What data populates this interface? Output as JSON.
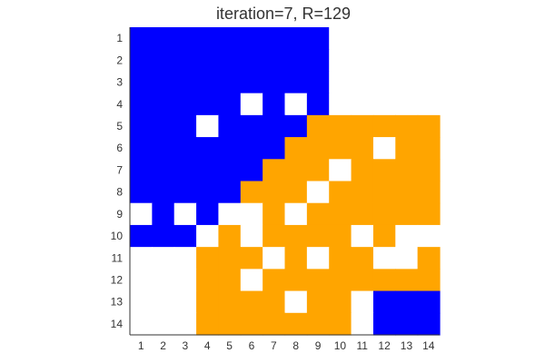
{
  "chart_data": {
    "type": "heatmap",
    "title": "iteration=7, R=129",
    "xlabel": "",
    "ylabel": "",
    "x_ticks": [
      "1",
      "2",
      "3",
      "4",
      "5",
      "6",
      "7",
      "8",
      "9",
      "10",
      "11",
      "12",
      "13",
      "14"
    ],
    "y_ticks": [
      "1",
      "2",
      "3",
      "4",
      "5",
      "6",
      "7",
      "8",
      "9",
      "10",
      "11",
      "12",
      "13",
      "14"
    ],
    "colors": {
      "blue": "#0000ff",
      "orange": "#ffa500",
      "white": "#ffffff"
    },
    "legend": null,
    "grid": false,
    "rows": [
      "BBBBBBBBBWWWWW",
      "BBBBBBBBBWWWWW",
      "BBBBBBBBBWWWWW",
      "BBBBBWBWBWWWWW",
      "BBBWBBBBOOOOOO",
      "BBBBBBBOOOOWOO",
      "BBBBBBOOOWOOOO",
      "BBBBBOOOWOOOOO",
      "WBWBWWOWOOOOOO",
      "BBBWOWOOOOWOWW",
      "WWWOOOWOWOOWWO",
      "WWWOOWOOOOOOOO",
      "WWWOOOOWOOWBBB",
      "WWWOOOOOOOWBBB"
    ]
  }
}
